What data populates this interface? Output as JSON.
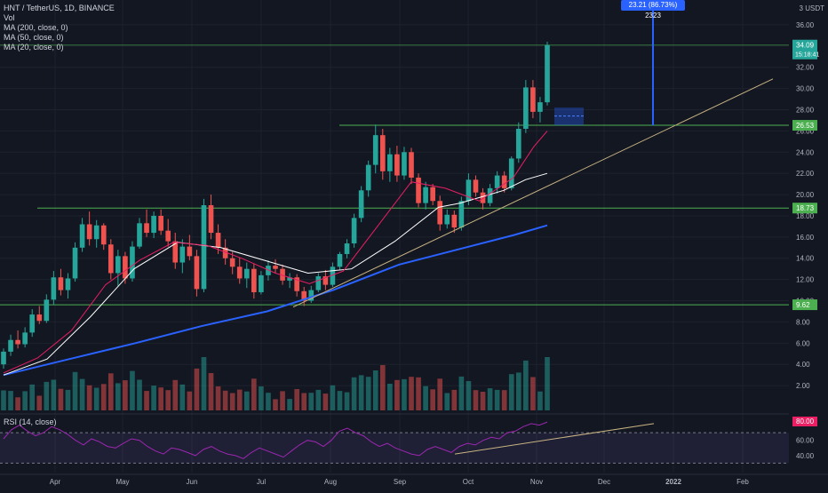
{
  "header": {
    "symbol_line": "HNT / TetherUS, 1D, BINANCE",
    "vol_label": "Vol",
    "ma200_label": "MA (200, close, 0)",
    "ma50_label": "MA (50, close, 0)",
    "ma20_label": "MA (20, close, 0)",
    "currency": "USDT",
    "currency_prefix": "3"
  },
  "rsi": {
    "label": "RSI (14, close)",
    "ticks": [
      "60.00",
      "40.00"
    ],
    "current_label": "80.00",
    "overbought": 70,
    "oversold": 30
  },
  "measure": {
    "label": "23.21 (86.73%) 2323"
  },
  "colors": {
    "background": "#131722",
    "up": "#26a69a",
    "down": "#ef5350",
    "ma200": "#2962ff",
    "ma50": "#ffffff",
    "ma20": "#e91e63",
    "hline": "#4caf50",
    "trendline": "#c8b482",
    "rsi_line": "#9c27b0"
  },
  "chart_data": {
    "type": "candlestick",
    "y_axis_ticks": [
      "36.00",
      "34.00",
      "32.00",
      "30.00",
      "28.00",
      "26.00",
      "24.00",
      "22.00",
      "20.00",
      "18.00",
      "16.00",
      "14.00",
      "12.00",
      "10.00",
      "8.00",
      "6.00",
      "4.00",
      "2.00"
    ],
    "x_axis_ticks": [
      "Apr",
      "May",
      "Jun",
      "Jul",
      "Aug",
      "Sep",
      "Oct",
      "Nov",
      "Dec",
      "2022",
      "Feb"
    ],
    "current_price": {
      "value": "34.09",
      "countdown": "15:18:41"
    },
    "price_labels": [
      {
        "value": "26.53",
        "level": 26.53
      },
      {
        "value": "18.73",
        "level": 18.73
      },
      {
        "value": "9.62",
        "level": 9.62
      }
    ],
    "ylim": [
      0,
      37.5
    ],
    "horizontal_levels": [
      34.09,
      26.53,
      18.73,
      9.62
    ],
    "candles": [
      [
        4.0,
        5.5,
        3.6,
        5.2
      ],
      [
        5.2,
        6.8,
        4.8,
        6.3
      ],
      [
        6.3,
        7.2,
        5.5,
        5.9
      ],
      [
        5.9,
        7.5,
        5.6,
        7.0
      ],
      [
        7.0,
        9.2,
        6.6,
        8.7
      ],
      [
        8.7,
        9.5,
        7.8,
        8.1
      ],
      [
        8.1,
        10.6,
        7.9,
        10.1
      ],
      [
        10.1,
        12.8,
        9.6,
        12.2
      ],
      [
        12.2,
        13.0,
        10.5,
        11.0
      ],
      [
        11.0,
        12.6,
        10.2,
        12.1
      ],
      [
        12.1,
        15.5,
        11.8,
        15.0
      ],
      [
        15.0,
        17.8,
        14.6,
        17.2
      ],
      [
        17.2,
        18.4,
        15.2,
        15.8
      ],
      [
        15.8,
        17.6,
        15.0,
        17.1
      ],
      [
        17.1,
        17.3,
        14.8,
        15.3
      ],
      [
        15.3,
        15.8,
        12.0,
        12.6
      ],
      [
        12.6,
        14.8,
        11.4,
        14.2
      ],
      [
        14.2,
        14.6,
        11.6,
        12.1
      ],
      [
        12.1,
        15.6,
        11.8,
        15.1
      ],
      [
        15.1,
        17.8,
        14.9,
        17.3
      ],
      [
        17.3,
        18.6,
        16.0,
        16.4
      ],
      [
        16.4,
        18.4,
        15.9,
        18.0
      ],
      [
        18.0,
        18.6,
        16.2,
        16.6
      ],
      [
        16.6,
        17.7,
        15.1,
        15.6
      ],
      [
        15.6,
        16.4,
        13.0,
        13.6
      ],
      [
        13.6,
        15.8,
        12.6,
        15.1
      ],
      [
        15.1,
        16.2,
        13.8,
        14.2
      ],
      [
        14.2,
        14.8,
        10.4,
        11.1
      ],
      [
        11.1,
        19.6,
        10.8,
        19.0
      ],
      [
        19.0,
        20.0,
        15.8,
        16.4
      ],
      [
        16.4,
        17.2,
        14.4,
        15.0
      ],
      [
        15.0,
        15.8,
        13.4,
        14.0
      ],
      [
        14.0,
        14.6,
        12.5,
        13.2
      ],
      [
        13.2,
        14.1,
        11.6,
        12.1
      ],
      [
        12.1,
        13.6,
        11.2,
        13.0
      ],
      [
        13.0,
        13.5,
        10.2,
        10.8
      ],
      [
        10.8,
        12.8,
        10.6,
        12.4
      ],
      [
        12.4,
        13.8,
        11.9,
        13.3
      ],
      [
        13.3,
        13.9,
        12.6,
        13.0
      ],
      [
        13.0,
        13.4,
        11.5,
        11.9
      ],
      [
        11.9,
        12.6,
        11.2,
        12.2
      ],
      [
        12.2,
        12.5,
        10.4,
        10.9
      ],
      [
        10.9,
        11.3,
        9.5,
        10.0
      ],
      [
        10.0,
        11.4,
        9.8,
        11.0
      ],
      [
        11.0,
        12.6,
        10.8,
        12.3
      ],
      [
        12.3,
        12.9,
        11.0,
        11.5
      ],
      [
        11.5,
        13.6,
        11.3,
        13.2
      ],
      [
        13.2,
        14.6,
        12.9,
        14.4
      ],
      [
        14.4,
        15.8,
        14.0,
        15.4
      ],
      [
        15.4,
        18.2,
        15.0,
        17.8
      ],
      [
        17.8,
        20.8,
        17.4,
        20.4
      ],
      [
        20.4,
        23.2,
        19.8,
        22.8
      ],
      [
        22.8,
        26.6,
        22.0,
        25.6
      ],
      [
        25.6,
        26.2,
        21.4,
        22.2
      ],
      [
        22.2,
        24.4,
        21.2,
        23.8
      ],
      [
        23.8,
        24.6,
        21.2,
        21.8
      ],
      [
        21.8,
        24.5,
        21.4,
        24.0
      ],
      [
        24.0,
        24.4,
        21.0,
        21.6
      ],
      [
        21.6,
        22.0,
        18.8,
        19.2
      ],
      [
        19.2,
        21.2,
        18.6,
        20.7
      ],
      [
        20.7,
        21.0,
        19.0,
        19.4
      ],
      [
        19.4,
        19.9,
        16.6,
        17.2
      ],
      [
        17.2,
        18.6,
        16.8,
        18.1
      ],
      [
        18.1,
        18.5,
        16.4,
        16.9
      ],
      [
        16.9,
        19.8,
        16.6,
        19.4
      ],
      [
        19.4,
        22.0,
        19.0,
        21.4
      ],
      [
        21.4,
        21.8,
        19.8,
        20.2
      ],
      [
        20.2,
        20.6,
        18.6,
        19.2
      ],
      [
        19.2,
        21.0,
        18.9,
        20.6
      ],
      [
        20.6,
        22.2,
        20.1,
        21.8
      ],
      [
        21.8,
        22.2,
        20.2,
        20.6
      ],
      [
        20.6,
        23.6,
        20.4,
        23.4
      ],
      [
        23.4,
        26.8,
        23.0,
        26.2
      ],
      [
        26.2,
        30.8,
        25.8,
        30.1
      ],
      [
        30.1,
        30.8,
        27.2,
        27.8
      ],
      [
        27.8,
        29.2,
        26.8,
        28.7
      ],
      [
        28.7,
        34.4,
        28.4,
        34.09
      ]
    ],
    "ma20": [
      [
        0,
        3.2
      ],
      [
        5,
        4.6
      ],
      [
        10,
        7.2
      ],
      [
        15,
        11.5
      ],
      [
        20,
        13.8
      ],
      [
        25,
        15.5
      ],
      [
        30,
        15.2
      ],
      [
        35,
        14.0
      ],
      [
        40,
        12.6
      ],
      [
        45,
        11.6
      ],
      [
        50,
        12.8
      ],
      [
        55,
        17.0
      ],
      [
        60,
        21.2
      ],
      [
        65,
        20.6
      ],
      [
        70,
        19.4
      ],
      [
        75,
        21.6
      ],
      [
        78,
        24.5
      ],
      [
        80,
        26.0
      ]
    ],
    "ma50": [
      [
        0,
        3.0
      ],
      [
        10,
        4.5
      ],
      [
        20,
        8.5
      ],
      [
        30,
        13.0
      ],
      [
        40,
        15.5
      ],
      [
        50,
        15.0
      ],
      [
        60,
        13.8
      ],
      [
        70,
        12.6
      ],
      [
        80,
        13.0
      ],
      [
        90,
        15.6
      ],
      [
        100,
        18.8
      ],
      [
        105,
        19.2
      ],
      [
        110,
        19.8
      ],
      [
        115,
        20.4
      ],
      [
        120,
        21.4
      ],
      [
        125,
        22.0
      ]
    ],
    "ma200": [
      [
        0,
        3.0
      ],
      [
        20,
        4.5
      ],
      [
        40,
        6.0
      ],
      [
        60,
        7.6
      ],
      [
        80,
        9.0
      ],
      [
        100,
        11.0
      ],
      [
        120,
        13.4
      ],
      [
        140,
        15.0
      ],
      [
        155,
        16.2
      ],
      [
        165,
        17.1
      ]
    ],
    "trendline": [
      [
        0,
        9.4
      ],
      [
        1,
        30.9
      ]
    ],
    "rsi_values": [
      62,
      74,
      80,
      72,
      66,
      70,
      78,
      74,
      68,
      60,
      54,
      62,
      58,
      52,
      50,
      56,
      62,
      60,
      52,
      46,
      42,
      50,
      48,
      44,
      40,
      48,
      52,
      46,
      42,
      40,
      36,
      44,
      50,
      46,
      42,
      38,
      46,
      54,
      60,
      58,
      52,
      60,
      72,
      76,
      70,
      66,
      58,
      52,
      56,
      50,
      46,
      42,
      40,
      48,
      52,
      48,
      44,
      52,
      56,
      54,
      60,
      64,
      62,
      70,
      72,
      78,
      82,
      80,
      84
    ]
  }
}
